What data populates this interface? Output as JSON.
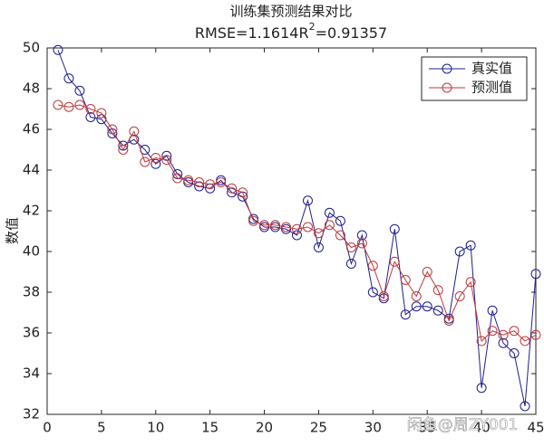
{
  "chart_data": {
    "type": "line",
    "title": "训练集预测结果对比",
    "subtitle_parts": [
      "RMSE=1.1614R",
      "2",
      "=0.91357"
    ],
    "ylabel": "数值",
    "annotation": "闲鱼@周ZY001",
    "x": [
      1,
      2,
      3,
      4,
      5,
      6,
      7,
      8,
      9,
      10,
      11,
      12,
      13,
      14,
      15,
      16,
      17,
      18,
      19,
      20,
      21,
      22,
      23,
      24,
      25,
      26,
      27,
      28,
      29,
      30,
      31,
      32,
      33,
      34,
      35,
      36,
      37,
      38,
      39,
      40,
      41,
      42,
      43,
      44,
      45
    ],
    "series": [
      {
        "name": "真实值",
        "color": "#1f1f8f",
        "values": [
          49.9,
          48.5,
          47.9,
          46.6,
          46.5,
          45.8,
          45.2,
          45.5,
          45.0,
          44.3,
          44.7,
          43.8,
          43.4,
          43.2,
          43.1,
          43.5,
          42.9,
          42.7,
          41.6,
          41.2,
          41.2,
          41.1,
          40.8,
          42.5,
          40.2,
          41.9,
          41.5,
          39.4,
          40.8,
          38.0,
          37.7,
          41.1,
          36.9,
          37.3,
          37.3,
          37.1,
          36.7,
          40.0,
          40.3,
          33.3,
          37.1,
          35.5,
          35.0,
          32.4,
          38.9
        ]
      },
      {
        "name": "预测值",
        "color": "#c0393b",
        "values": [
          47.2,
          47.1,
          47.2,
          47.0,
          46.8,
          46.0,
          45.0,
          45.9,
          44.4,
          44.6,
          44.5,
          43.6,
          43.5,
          43.4,
          43.3,
          43.4,
          43.1,
          42.9,
          41.5,
          41.3,
          41.3,
          41.2,
          41.1,
          41.2,
          40.9,
          41.3,
          40.8,
          40.2,
          40.4,
          39.3,
          37.8,
          39.5,
          38.6,
          37.8,
          39.0,
          38.1,
          36.6,
          37.8,
          38.5,
          35.6,
          36.1,
          35.9,
          36.1,
          35.6,
          35.9
        ]
      }
    ],
    "xlim": [
      0,
      45
    ],
    "xticks": [
      0,
      5,
      10,
      15,
      20,
      25,
      30,
      35,
      40,
      45
    ],
    "ylim": [
      32,
      50
    ],
    "yticks": [
      32,
      34,
      36,
      38,
      40,
      42,
      44,
      46,
      48,
      50
    ],
    "legend": "northeast",
    "grid": false
  }
}
